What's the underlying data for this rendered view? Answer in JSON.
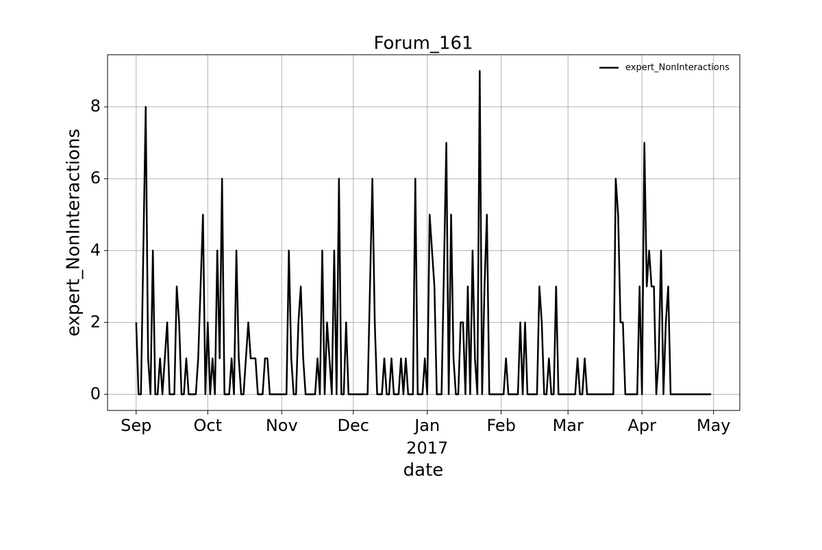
{
  "chart_data": {
    "type": "line",
    "title": "Forum_161",
    "x_label": "date",
    "y_label": "expert_NonInteractions",
    "x": [
      0,
      1,
      2,
      4,
      5,
      6,
      7,
      8,
      9,
      10,
      11,
      13,
      14,
      16,
      17,
      18,
      19,
      20,
      21,
      22,
      25,
      26,
      28,
      29,
      30,
      31,
      32,
      33,
      34,
      35,
      36,
      37,
      39,
      40,
      41,
      42,
      43,
      44,
      45,
      47,
      48,
      50,
      51,
      53,
      54,
      55,
      56,
      63,
      64,
      65,
      66,
      67,
      68,
      69,
      70,
      71,
      75,
      76,
      77,
      78,
      79,
      80,
      81,
      82,
      83,
      84,
      85,
      86,
      87,
      88,
      89,
      97,
      99,
      100,
      101,
      103,
      104,
      105,
      106,
      107,
      108,
      110,
      111,
      112,
      113,
      114,
      116,
      117,
      118,
      120,
      121,
      122,
      123,
      124,
      125,
      126,
      128,
      130,
      131,
      132,
      133,
      134,
      135,
      136,
      137,
      138,
      139,
      140,
      141,
      142,
      143,
      144,
      145,
      146,
      147,
      148,
      154,
      155,
      156,
      160,
      161,
      162,
      163,
      164,
      168,
      169,
      170,
      171,
      172,
      173,
      174,
      175,
      176,
      177,
      184,
      185,
      186,
      187,
      188,
      189,
      200,
      201,
      202,
      203,
      204,
      205,
      210,
      211,
      212,
      213,
      214,
      215,
      216,
      217,
      218,
      219,
      220,
      221,
      222,
      223,
      224,
      241
    ],
    "series": [
      {
        "name": "expert_NonInteractions",
        "color": "#000000",
        "values": [
          2,
          0,
          0,
          8,
          1,
          0,
          4,
          0,
          0,
          1,
          0,
          2,
          0,
          0,
          3,
          2,
          0,
          0,
          1,
          0,
          0,
          1,
          5,
          0,
          2,
          0,
          1,
          0,
          4,
          1,
          6,
          0,
          0,
          1,
          0,
          4,
          1,
          0,
          0,
          2,
          1,
          1,
          0,
          0,
          1,
          1,
          0,
          0,
          4,
          1,
          0,
          0,
          2,
          3,
          1,
          0,
          0,
          1,
          0,
          4,
          0,
          2,
          1,
          0,
          4,
          0,
          6,
          0,
          0,
          2,
          0,
          0,
          6,
          2,
          0,
          0,
          1,
          0,
          0,
          1,
          0,
          0,
          1,
          0,
          1,
          0,
          0,
          6,
          0,
          0,
          1,
          0,
          5,
          4,
          3,
          0,
          0,
          7,
          0,
          5,
          1,
          0,
          0,
          2,
          2,
          0,
          3,
          0,
          4,
          1,
          0,
          9,
          0,
          3,
          5,
          0,
          0,
          1,
          0,
          0,
          2,
          0,
          2,
          0,
          0,
          3,
          2,
          0,
          0,
          1,
          0,
          0,
          3,
          0,
          0,
          1,
          0,
          0,
          1,
          0,
          0,
          6,
          5,
          2,
          2,
          0,
          0,
          3,
          0,
          7,
          3,
          4,
          3,
          3,
          0,
          1,
          4,
          0,
          2,
          3,
          0,
          0
        ]
      }
    ],
    "xlim": [
      -12,
      253
    ],
    "ylim": [
      -0.45,
      9.45
    ],
    "xticks": [
      {
        "value": 0,
        "label": "Sep"
      },
      {
        "value": 30,
        "label": "Oct"
      },
      {
        "value": 61,
        "label": "Nov"
      },
      {
        "value": 91,
        "label": "Dec"
      },
      {
        "value": 122,
        "label": "Jan\n2017"
      },
      {
        "value": 153,
        "label": "Feb"
      },
      {
        "value": 181,
        "label": "Mar"
      },
      {
        "value": 212,
        "label": "Apr"
      },
      {
        "value": 242,
        "label": "May"
      }
    ],
    "yticks": [
      0,
      2,
      4,
      6,
      8
    ],
    "grid": true,
    "legend": "upper right"
  }
}
